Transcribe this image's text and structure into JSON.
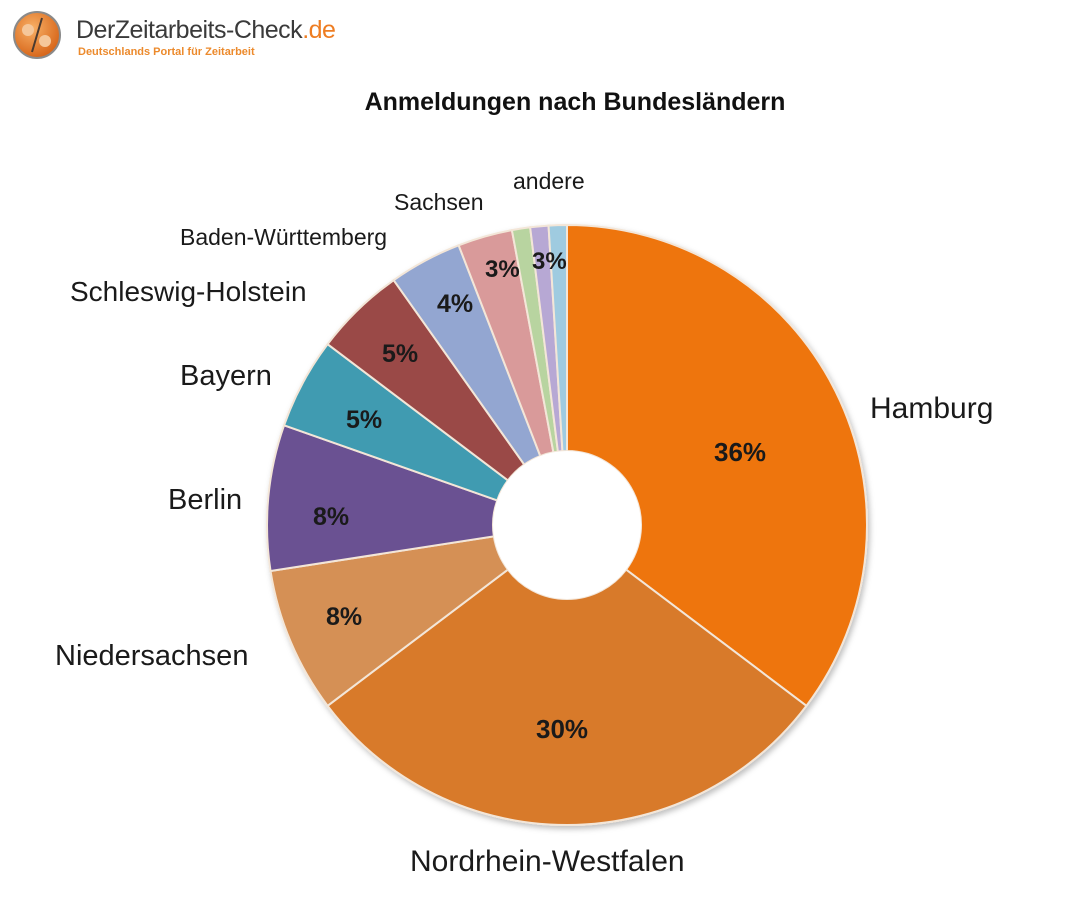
{
  "logo": {
    "title": "DerZeitarbeits-Check",
    "tld": ".de",
    "subtitle": "Deutschlands Portal für Zeitarbeit"
  },
  "chart_data": {
    "type": "pie",
    "variant": "donut",
    "title": "Anmeldungen nach Bundesländern",
    "categories": [
      "Hamburg",
      "Nordrhein-Westfalen",
      "Niedersachsen",
      "Berlin",
      "Bayern",
      "Schleswig-Holstein",
      "Baden-Württemberg",
      "Sachsen",
      "andere"
    ],
    "values": [
      36,
      30,
      8,
      8,
      5,
      5,
      4,
      3,
      3
    ],
    "value_labels": [
      "36%",
      "30%",
      "8%",
      "8%",
      "5%",
      "5%",
      "4%",
      "3%",
      "3%"
    ],
    "unit": "%",
    "colors": [
      "#ee7511",
      "#d87a2c",
      "#d59055",
      "#6b5192",
      "#3f9bb1",
      "#9a4a46",
      "#93a6d1",
      "#d99a9a",
      "#b8d4a0"
    ],
    "andere_sub_colors": [
      "#b8d4a0",
      "#b7a8d4",
      "#9fcbe0"
    ],
    "legend": "none (labels placed around chart)",
    "start_angle_deg": 0,
    "direction": "clockwise"
  },
  "labels": {
    "hamburg": "Hamburg",
    "nrw": "Nordrhein-Westfalen",
    "niedersachsen": "Niedersachsen",
    "berlin": "Berlin",
    "bayern": "Bayern",
    "sh": "Schleswig-Holstein",
    "bw": "Baden-Württemberg",
    "sachsen": "Sachsen",
    "andere": "andere"
  },
  "pct": {
    "hamburg": "36%",
    "nrw": "30%",
    "niedersachsen": "8%",
    "berlin": "8%",
    "bayern": "5%",
    "sh": "5%",
    "bw": "4%",
    "sachsen": "3%",
    "andere": "3%"
  }
}
